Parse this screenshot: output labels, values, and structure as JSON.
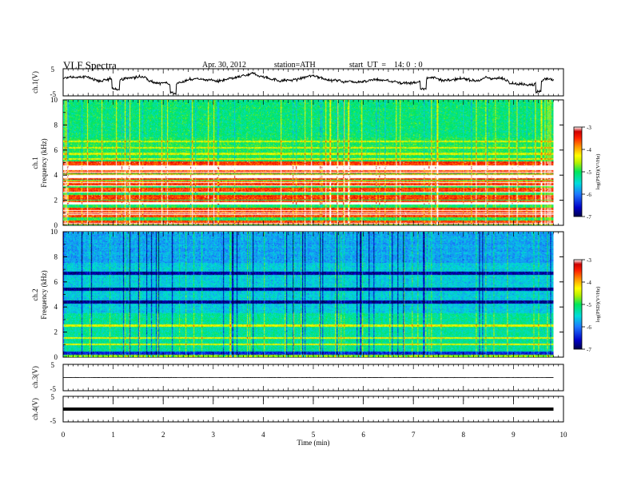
{
  "header": {
    "title": "VLF  Spectra",
    "date": "Apr. 30, 2012",
    "station": "station=ATH",
    "start": "start  UT  =    14: 0  : 0"
  },
  "chart_data": [
    {
      "type": "line",
      "name": "ch1-waveform",
      "ylabel": "ch.1(V)",
      "ylim": [
        -5,
        5
      ],
      "y_ticks": [
        "5",
        "-5"
      ]
    },
    {
      "type": "heatmap",
      "name": "ch1-spectrogram",
      "ylabel_top": "ch.1",
      "ylabel": "Frequency  (kHz)",
      "ylim": [
        0,
        10
      ],
      "y_ticks": [
        "0",
        "2",
        "4",
        "6",
        "8",
        "10"
      ],
      "colorbar": {
        "label": "log(PSD)(V²/Hz)",
        "range": [
          -7,
          -3
        ],
        "ticks": [
          "-3",
          "-4",
          "-5",
          "-6",
          "-7"
        ]
      },
      "strong_bands_khz": [
        0.2,
        0.8,
        1.2,
        1.8,
        2.2,
        2.8,
        3.3,
        3.8,
        4.3,
        4.6,
        4.9
      ],
      "weak_bands_khz": [
        5.3,
        5.7,
        6.2,
        6.7
      ]
    },
    {
      "type": "heatmap",
      "name": "ch2-spectrogram",
      "ylabel_top": "ch.2",
      "ylabel": "Frequency  (kHz)",
      "ylim": [
        0,
        10
      ],
      "y_ticks": [
        "0",
        "2",
        "4",
        "6",
        "8",
        "10"
      ],
      "colorbar": {
        "label": "log(PSD)(V²/Hz)",
        "range": [
          -7,
          -3
        ],
        "ticks": [
          "-3",
          "-4",
          "-5",
          "-6",
          "-7"
        ]
      },
      "dark_bands_khz": [
        0.3,
        4.4,
        5.4,
        6.7
      ],
      "bright_bands_khz": [
        1.0,
        1.5,
        2.5
      ]
    },
    {
      "type": "line",
      "name": "ch3-waveform",
      "ylabel": "ch.3(V)",
      "ylim": [
        -5,
        5
      ],
      "y_ticks": [
        "5",
        "-5"
      ],
      "level": 0
    },
    {
      "type": "line",
      "name": "ch4-waveform",
      "ylabel": "ch.4(V)",
      "ylim": [
        -5,
        5
      ],
      "y_ticks": [
        "5",
        "-5"
      ],
      "level": 0
    }
  ],
  "x_axis": {
    "label": "Time  (min)",
    "range": [
      0,
      10
    ],
    "data_end": 9.8,
    "ticks": [
      "0",
      "1",
      "2",
      "3",
      "4",
      "5",
      "6",
      "7",
      "8",
      "9",
      "10"
    ]
  },
  "colors": {
    "scale": [
      "#00004a",
      "#0000c8",
      "#1e78ff",
      "#00dcdc",
      "#00e65a",
      "#b4f000",
      "#ffff00",
      "#ff9600",
      "#ff1e00",
      "#cd0000",
      "#ffffff"
    ]
  }
}
